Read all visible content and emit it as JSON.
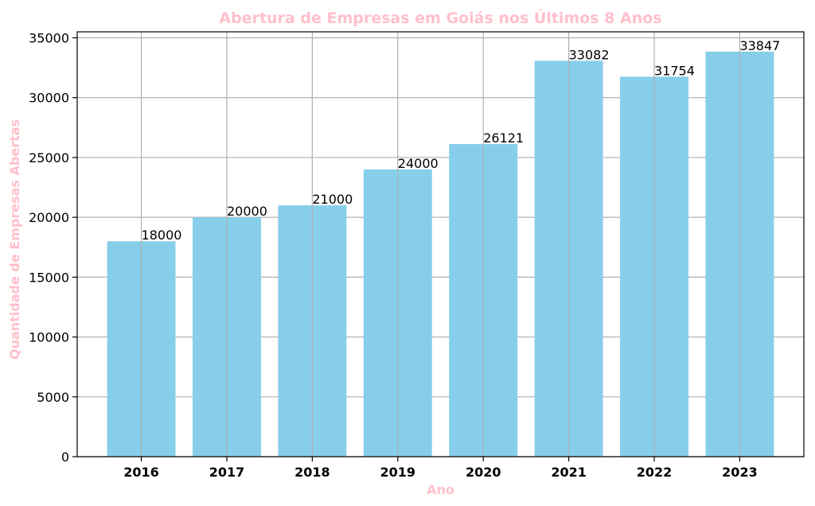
{
  "chart_data": {
    "type": "bar",
    "title": "Abertura de Empresas em Goiás nos Últimos 8 Anos",
    "xlabel": "Ano",
    "ylabel": "Quantidade de Empresas Abertas",
    "categories": [
      "2016",
      "2017",
      "2018",
      "2019",
      "2020",
      "2021",
      "2022",
      "2023"
    ],
    "values": [
      18000,
      20000,
      21000,
      24000,
      26121,
      33082,
      31754,
      33847
    ],
    "ylim": [
      0,
      35500
    ],
    "yticks": [
      0,
      5000,
      10000,
      15000,
      20000,
      25000,
      30000,
      35000
    ],
    "grid": true,
    "colors": {
      "bar": "#87ceeb",
      "label_text": "#ffc0cb",
      "grid": "#b0b0b0"
    }
  }
}
